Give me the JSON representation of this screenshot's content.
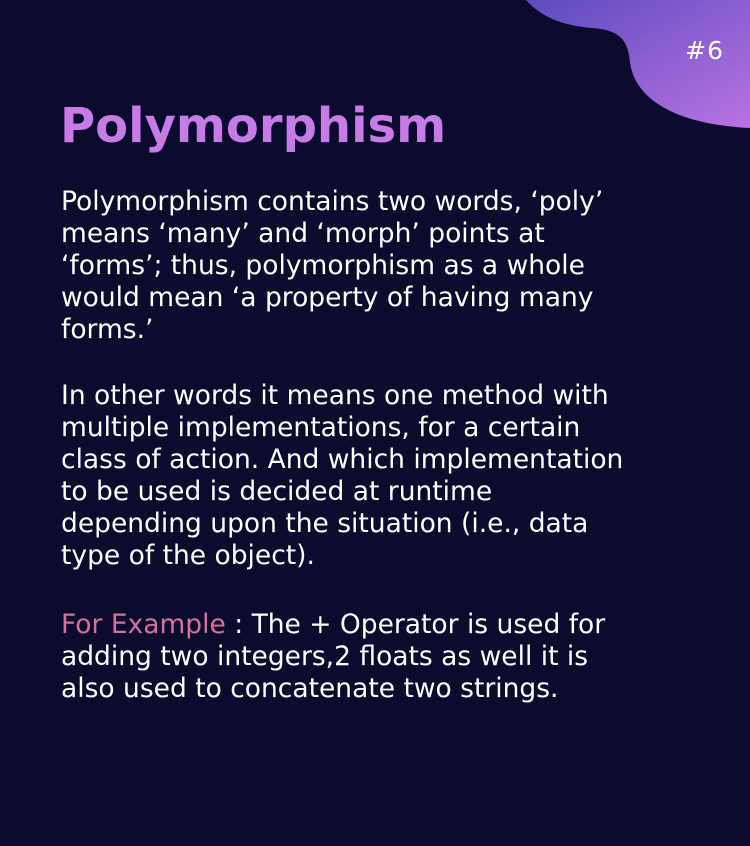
{
  "slide": {
    "number": "#6",
    "title": "Polymorphism",
    "paragraph_1": [
      "Polymorphism contains two words, ‘poly’",
      "means ‘many’ and ‘morph’ points at",
      "‘forms’; thus, polymorphism as a whole",
      "would mean ‘a property of having many",
      "forms.’"
    ],
    "paragraph_2": [
      "In other words it means one method with",
      "multiple implementations, for a certain",
      "class of action. And which implementation",
      "to be used is decided at runtime",
      "depending upon the situation (i.e., data",
      "type of the object)."
    ],
    "example": {
      "label": "For Example",
      "first_line_rest": " : The + Operator is used for",
      "lines": [
        "adding two integers,2 floats as well it is",
        "also used to concatenate two strings."
      ]
    }
  },
  "colors": {
    "background": "#0b0b2e",
    "title": "#c77be6",
    "accent": "#d6709c",
    "blob_start": "#6a4fc4",
    "blob_end": "#b46fe0"
  }
}
